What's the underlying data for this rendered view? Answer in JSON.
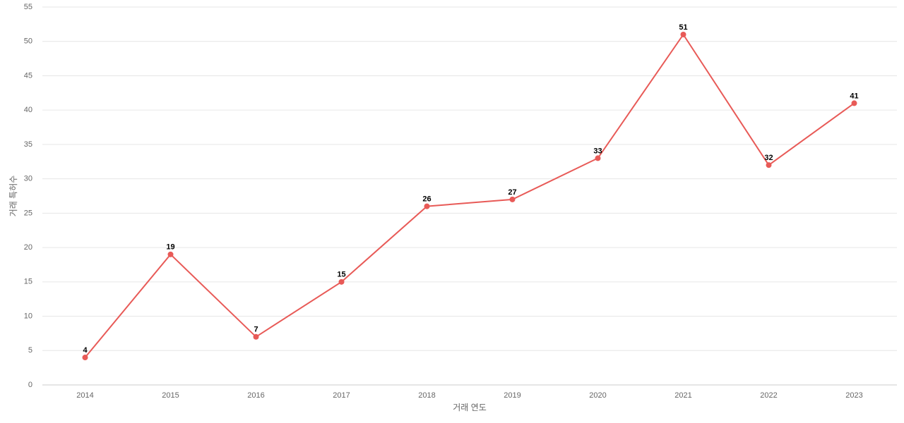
{
  "chart_data": {
    "type": "line",
    "x_label": "거래 연도",
    "y_label": "거래 특허수",
    "categories": [
      "2014",
      "2015",
      "2016",
      "2017",
      "2018",
      "2019",
      "2020",
      "2021",
      "2022",
      "2023"
    ],
    "values": [
      4,
      19,
      7,
      15,
      26,
      27,
      33,
      51,
      32,
      41
    ],
    "color": "#e85a57",
    "ylim": [
      0,
      55
    ],
    "yticks": [
      0,
      5,
      10,
      15,
      20,
      25,
      30,
      35,
      40,
      45,
      50,
      55
    ],
    "grid": true
  }
}
